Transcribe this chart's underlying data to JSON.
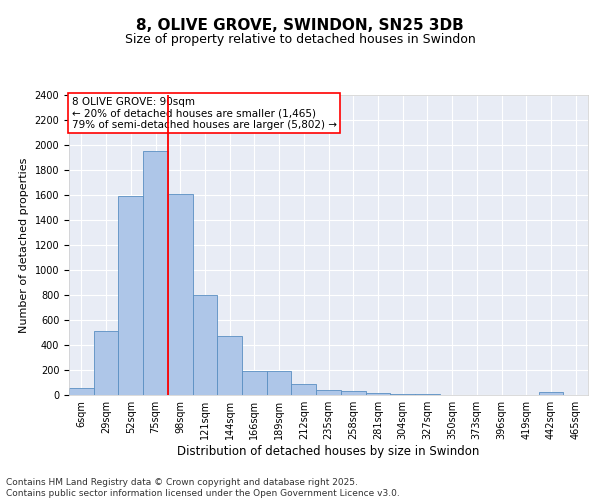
{
  "title": "8, OLIVE GROVE, SWINDON, SN25 3DB",
  "subtitle": "Size of property relative to detached houses in Swindon",
  "xlabel": "Distribution of detached houses by size in Swindon",
  "ylabel": "Number of detached properties",
  "bar_labels": [
    "6sqm",
    "29sqm",
    "52sqm",
    "75sqm",
    "98sqm",
    "121sqm",
    "144sqm",
    "166sqm",
    "189sqm",
    "212sqm",
    "235sqm",
    "258sqm",
    "281sqm",
    "304sqm",
    "327sqm",
    "350sqm",
    "373sqm",
    "396sqm",
    "419sqm",
    "442sqm",
    "465sqm"
  ],
  "bar_values": [
    55,
    510,
    1590,
    1950,
    1610,
    800,
    475,
    195,
    195,
    90,
    40,
    30,
    20,
    10,
    10,
    0,
    0,
    0,
    0,
    25,
    0
  ],
  "bar_color": "#aec6e8",
  "bar_edge_color": "#5a8fc2",
  "bg_color": "#e8ecf5",
  "grid_color": "#ffffff",
  "vline_x_index": 4,
  "vline_color": "red",
  "annotation_text": "8 OLIVE GROVE: 90sqm\n← 20% of detached houses are smaller (1,465)\n79% of semi-detached houses are larger (5,802) →",
  "annotation_box_color": "red",
  "ylim": [
    0,
    2400
  ],
  "yticks": [
    0,
    200,
    400,
    600,
    800,
    1000,
    1200,
    1400,
    1600,
    1800,
    2000,
    2200,
    2400
  ],
  "footer_text": "Contains HM Land Registry data © Crown copyright and database right 2025.\nContains public sector information licensed under the Open Government Licence v3.0.",
  "title_fontsize": 11,
  "subtitle_fontsize": 9,
  "xlabel_fontsize": 8.5,
  "ylabel_fontsize": 8,
  "tick_fontsize": 7,
  "footer_fontsize": 6.5,
  "annot_fontsize": 7.5
}
